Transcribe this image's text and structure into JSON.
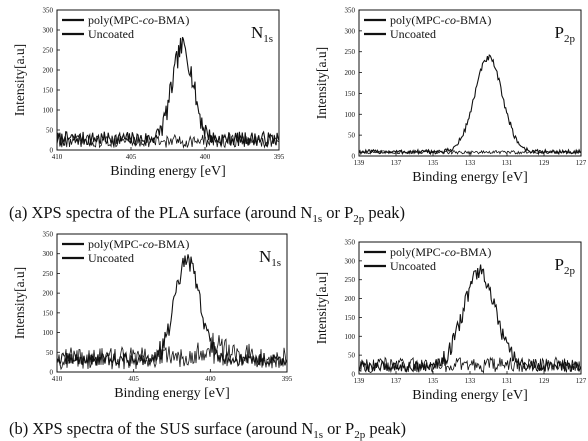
{
  "chart_data": [
    {
      "id": "pla-n1s",
      "type": "line",
      "xlabel": "Binding energy [eV]",
      "ylabel": "Intensity[a.u]",
      "x_reversed": true,
      "xlim": [
        410,
        395
      ],
      "ylim": [
        0,
        350
      ],
      "x_ticks": [
        "410",
        "405",
        "400",
        "395"
      ],
      "y_ticks": [
        "0",
        "50",
        "100",
        "150",
        "200",
        "250",
        "300",
        "350"
      ],
      "element_label": {
        "main": "N",
        "sub": "1s"
      },
      "legend": {
        "placement": "top-left"
      },
      "series": [
        {
          "name": "poly(MPC-co-BMA)",
          "name_parts": [
            "poly(MPC-",
            "co",
            "-BMA)"
          ],
          "peak_x": 401.5,
          "peak_height": 230,
          "sigma": 0.7,
          "baseline": 28,
          "noise": 18,
          "color": "#111111"
        },
        {
          "name": "Uncoated",
          "peak_x": 401.5,
          "peak_height": 0,
          "sigma": 1,
          "baseline": 22,
          "noise": 16,
          "color": "#111111"
        }
      ]
    },
    {
      "id": "pla-p2p",
      "type": "line",
      "xlabel": "Binding energy [eV]",
      "ylabel": "Intensity[a.u]",
      "x_reversed": true,
      "xlim": [
        139,
        127
      ],
      "ylim": [
        0,
        350
      ],
      "x_ticks": [
        "139",
        "137",
        "135",
        "133",
        "131",
        "129",
        "127"
      ],
      "y_ticks": [
        "0",
        "50",
        "100",
        "150",
        "200",
        "250",
        "300",
        "350"
      ],
      "element_label": {
        "main": "P",
        "sub": "2p"
      },
      "legend": {
        "placement": "top-left"
      },
      "series": [
        {
          "name": "poly(MPC-co-BMA)",
          "name_parts": [
            "poly(MPC-",
            "co",
            "-BMA)"
          ],
          "peak_x": 132.0,
          "peak_height": 225,
          "sigma": 0.75,
          "baseline": 10,
          "noise": 5,
          "color": "#111111"
        },
        {
          "name": "Uncoated",
          "peak_x": 132,
          "peak_height": 0,
          "sigma": 1,
          "baseline": 9,
          "noise": 4,
          "color": "#111111"
        }
      ]
    },
    {
      "id": "sus-n1s",
      "type": "line",
      "xlabel": "Binding energy [eV]",
      "ylabel": "Intensity[a.u]",
      "x_reversed": true,
      "xlim": [
        410,
        395
      ],
      "ylim": [
        0,
        350
      ],
      "x_ticks": [
        "410",
        "405",
        "400",
        "395"
      ],
      "y_ticks": [
        "0",
        "50",
        "100",
        "150",
        "200",
        "250",
        "300",
        "350"
      ],
      "element_label": {
        "main": "N",
        "sub": "1s"
      },
      "legend": {
        "placement": "top-left"
      },
      "series": [
        {
          "name": "poly(MPC-co-BMA)",
          "name_parts": [
            "poly(MPC-",
            "co",
            "-BMA)"
          ],
          "peak_x": 401.5,
          "peak_height": 250,
          "sigma": 0.8,
          "baseline": 32,
          "noise": 16,
          "color": "#111111"
        },
        {
          "name": "Uncoated",
          "peak_x": 399.5,
          "peak_height": 22,
          "sigma": 1.5,
          "baseline": 35,
          "noise": 28,
          "color": "#111111"
        }
      ]
    },
    {
      "id": "sus-p2p",
      "type": "line",
      "xlabel": "Binding energy [eV]",
      "ylabel": "Intensity[a.u]",
      "x_reversed": true,
      "xlim": [
        139,
        127
      ],
      "ylim": [
        0,
        350
      ],
      "x_ticks": [
        "139",
        "137",
        "135",
        "133",
        "131",
        "129",
        "127"
      ],
      "y_ticks": [
        "0",
        "50",
        "100",
        "150",
        "200",
        "250",
        "300",
        "350"
      ],
      "element_label": {
        "main": "P",
        "sub": "2p"
      },
      "legend": {
        "placement": "top-left"
      },
      "series": [
        {
          "name": "poly(MPC-co-BMA)",
          "name_parts": [
            "poly(MPC-",
            "co",
            "-BMA)"
          ],
          "peak_x": 132.5,
          "peak_height": 250,
          "sigma": 0.85,
          "baseline": 20,
          "noise": 14,
          "color": "#111111"
        },
        {
          "name": "Uncoated",
          "peak_x": 132,
          "peak_height": 0,
          "sigma": 1,
          "baseline": 24,
          "noise": 20,
          "color": "#111111"
        }
      ]
    }
  ],
  "captions": [
    {
      "prefix": "(a) XPS spectra of the PLA surface (around N",
      "sub1": "1s",
      "mid": " or P",
      "sub2": "2p",
      "suffix": " peak)"
    },
    {
      "prefix": "(b) XPS spectra of the SUS surface (around N",
      "sub1": "1s",
      "mid": " or P",
      "sub2": "2p",
      "suffix": " peak)"
    }
  ]
}
